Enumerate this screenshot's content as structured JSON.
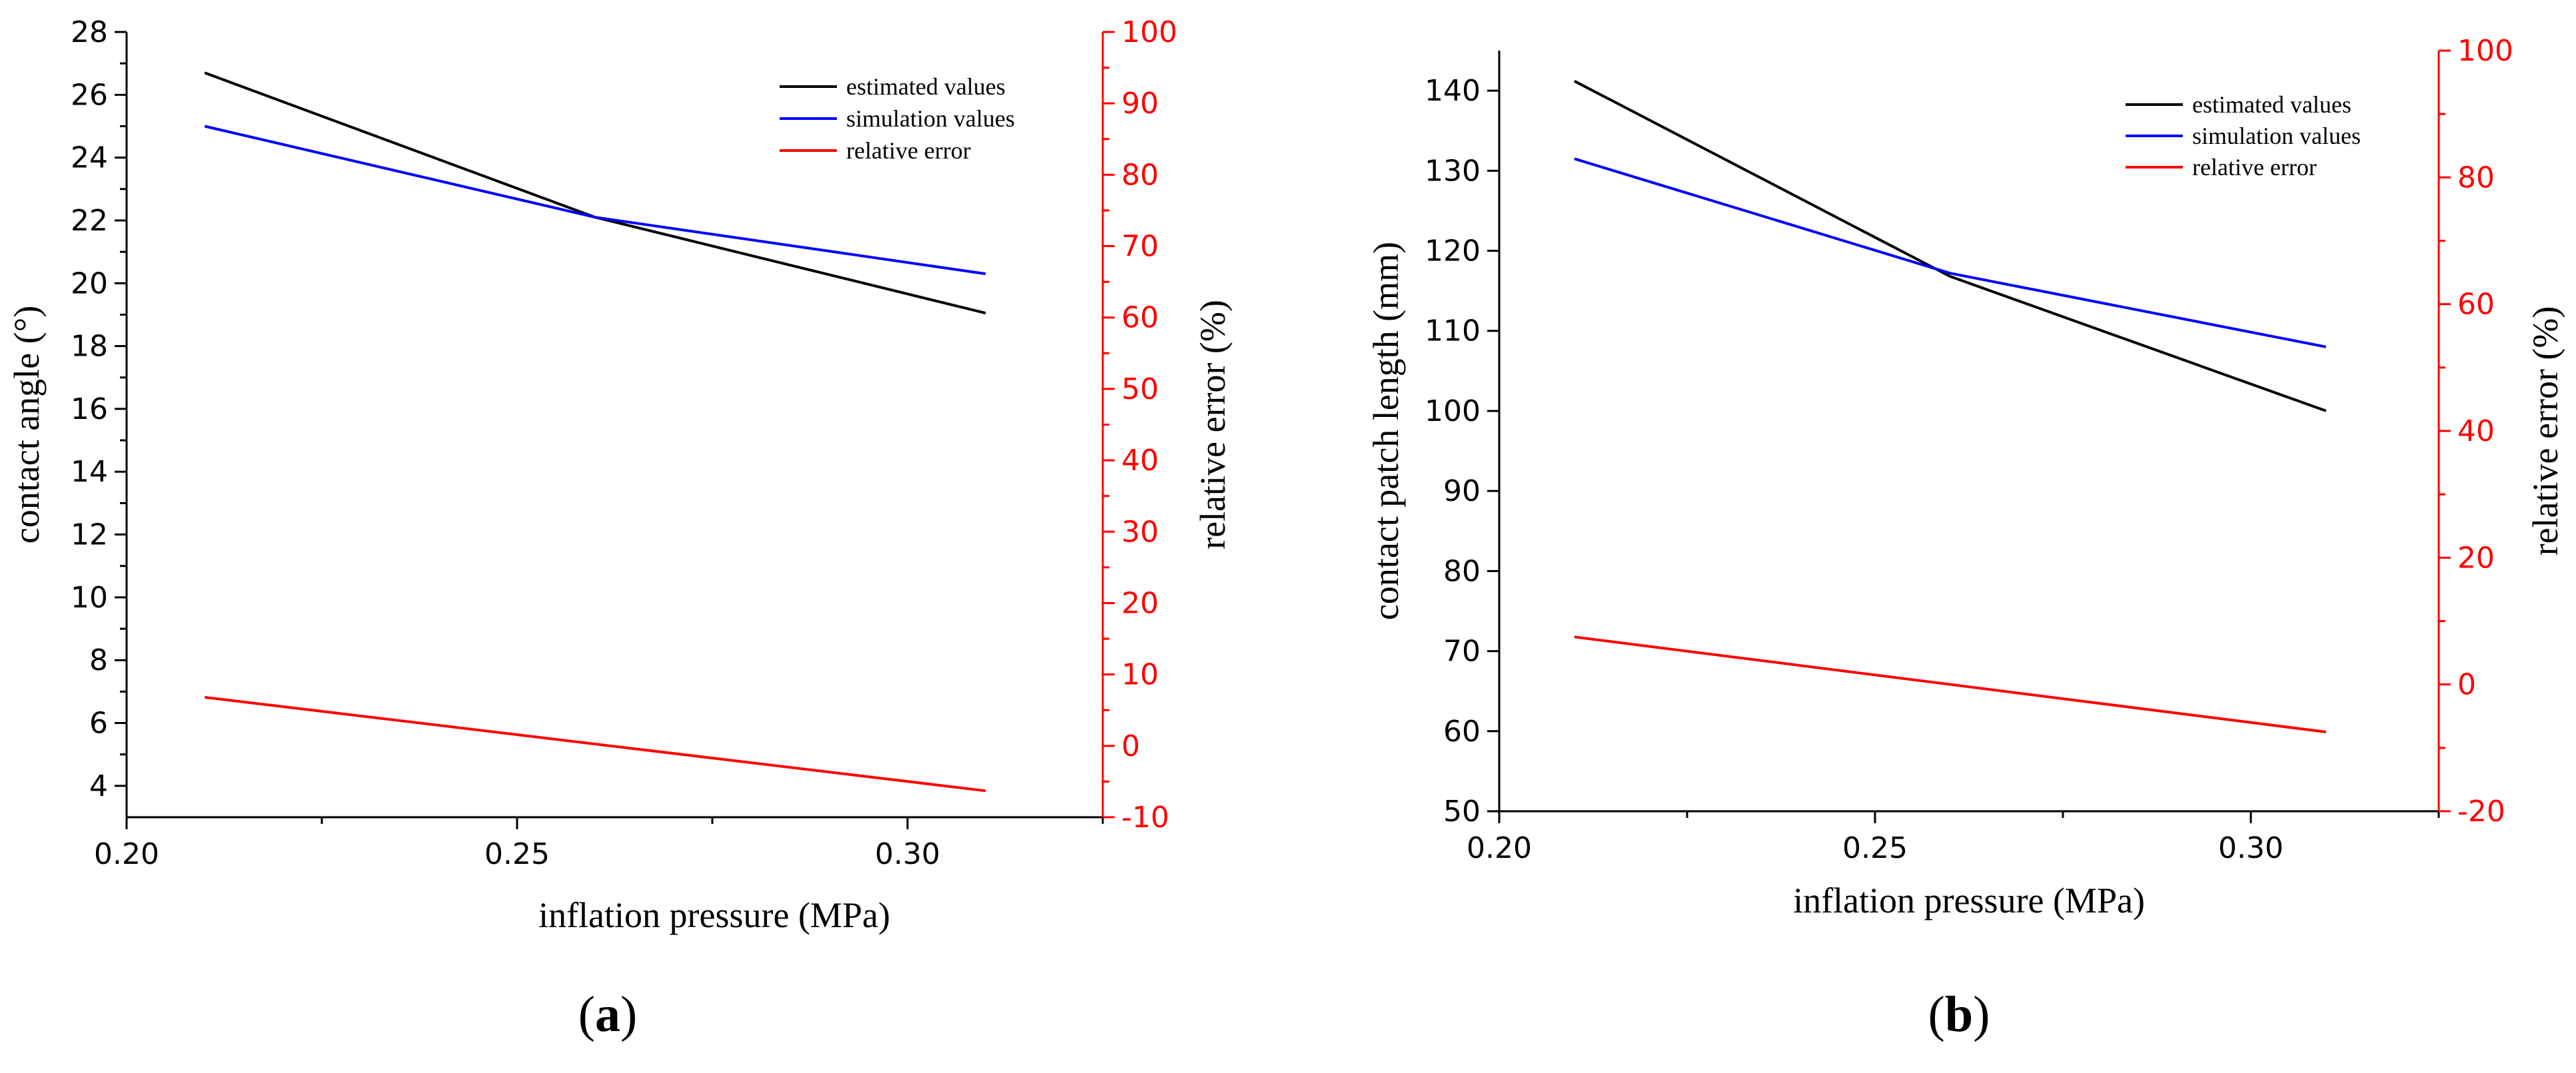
{
  "colors": {
    "estimated": "#000000",
    "simulation": "#0000ff",
    "error": "#ff0000",
    "axis": "#000000"
  },
  "chart_data": [
    {
      "type": "line",
      "panel_label": "a",
      "xlabel": "inflation pressure (MPa)",
      "ylabel": "contact angle (°)",
      "y2label": "relative error (%)",
      "xlim": [
        0.2,
        0.325
      ],
      "ylim": [
        3,
        28
      ],
      "y2lim": [
        -10,
        100
      ],
      "x_ticks": [
        "0.20",
        "0.25",
        "0.30"
      ],
      "x_tick_values": [
        0.2,
        0.25,
        0.3
      ],
      "y_ticks": [
        4,
        6,
        8,
        10,
        12,
        14,
        16,
        18,
        20,
        22,
        24,
        26,
        28
      ],
      "y2_ticks": [
        -10,
        0,
        10,
        20,
        30,
        40,
        50,
        60,
        70,
        80,
        90,
        100
      ],
      "legend_position": "top-right",
      "series": [
        {
          "name": "estimated values",
          "axis": "left",
          "x": [
            0.21,
            0.26,
            0.31
          ],
          "values": [
            26.7,
            22.1,
            19.05
          ]
        },
        {
          "name": "simulation values",
          "axis": "left",
          "x": [
            0.21,
            0.26,
            0.31
          ],
          "values": [
            25.0,
            22.1,
            20.3
          ]
        },
        {
          "name": "relative error",
          "axis": "right",
          "x": [
            0.21,
            0.31
          ],
          "values": [
            6.8,
            -6.3
          ]
        }
      ]
    },
    {
      "type": "line",
      "panel_label": "b",
      "xlabel": "inflation pressure (MPa)",
      "ylabel": "contact patch length (mm)",
      "y2label": "relative error (%)",
      "xlim": [
        0.2,
        0.325
      ],
      "ylim": [
        50,
        145
      ],
      "y2lim": [
        -20,
        100
      ],
      "x_ticks": [
        "0.20",
        "0.25",
        "0.30"
      ],
      "x_tick_values": [
        0.2,
        0.25,
        0.3
      ],
      "y_ticks": [
        50,
        60,
        70,
        80,
        90,
        100,
        110,
        120,
        130,
        140
      ],
      "y2_ticks": [
        -20,
        0,
        20,
        40,
        60,
        80,
        100
      ],
      "legend_position": "top-right",
      "series": [
        {
          "name": "estimated values",
          "axis": "left",
          "x": [
            0.21,
            0.26,
            0.31
          ],
          "values": [
            141.2,
            116.8,
            100.0
          ]
        },
        {
          "name": "simulation values",
          "axis": "left",
          "x": [
            0.21,
            0.26,
            0.31
          ],
          "values": [
            131.5,
            117.2,
            108.0
          ]
        },
        {
          "name": "relative error",
          "axis": "right",
          "x": [
            0.21,
            0.31
          ],
          "values": [
            7.5,
            -7.5
          ]
        }
      ]
    }
  ]
}
